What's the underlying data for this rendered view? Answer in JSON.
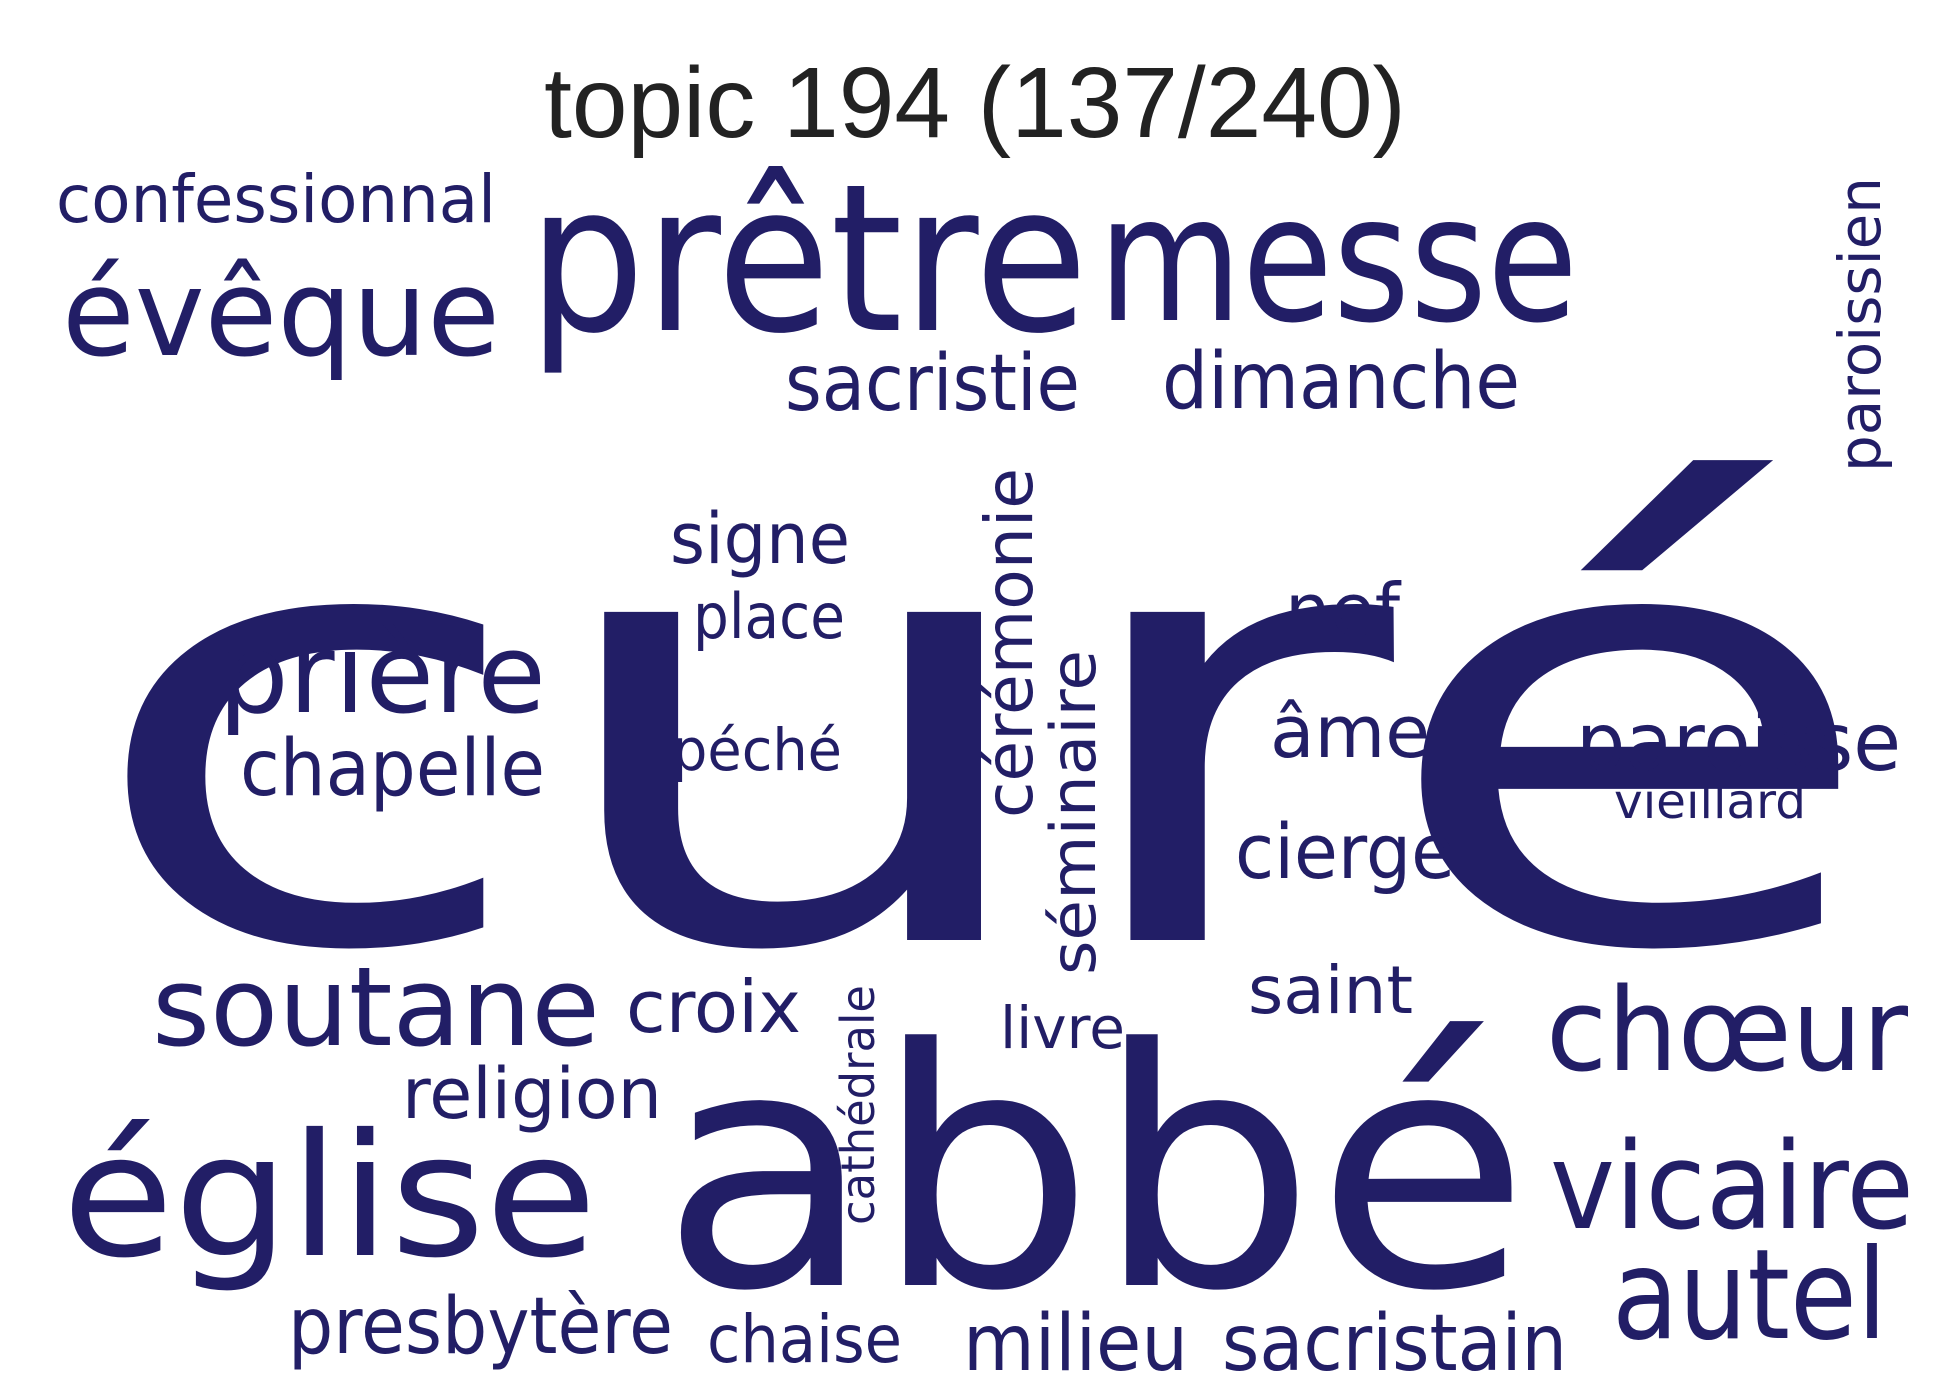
{
  "title": "topic 194 (137/240)",
  "word_color": "#221e66",
  "title_color": "#222222",
  "words": [
    "curé",
    "abbé",
    "prêtre",
    "messe",
    "église",
    "évêque",
    "prière",
    "soutane",
    "chœur",
    "vicaire",
    "autel",
    "paroisse",
    "dimanche",
    "sacristie",
    "chapelle",
    "confessionnal",
    "paroissien",
    "cérémonie",
    "séminaire",
    "signe",
    "place",
    "péché",
    "nef",
    "âme",
    "cierge",
    "vieillard",
    "saint",
    "croix",
    "livre",
    "religion",
    "cathédrale",
    "presbytère",
    "chaise",
    "milieu",
    "sacristain"
  ]
}
